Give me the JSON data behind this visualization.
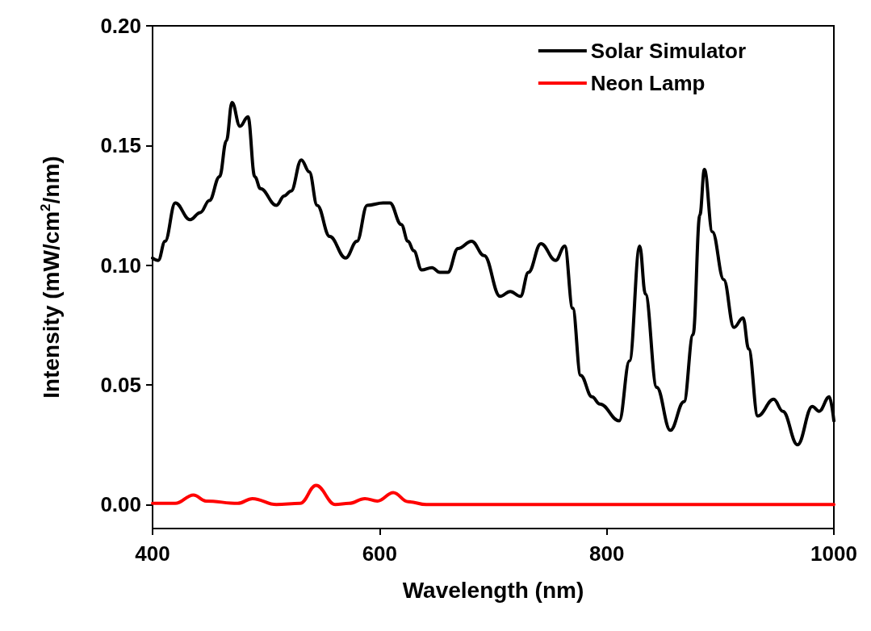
{
  "chart_data": {
    "type": "line",
    "xlabel": "Wavelength (nm)",
    "ylabel": "Intensity (mW/cm$^{2}$/nm)",
    "xlim": [
      400,
      1000
    ],
    "xticks": [
      400,
      600,
      800,
      1000
    ],
    "ylim": [
      -0.01,
      0.2
    ],
    "yticks": [
      {
        "value": 0,
        "label": "0.00"
      },
      {
        "value": 0.05,
        "label": "0.05"
      },
      {
        "value": 0.1,
        "label": "0.10"
      },
      {
        "value": 0.15,
        "label": "0.15"
      },
      {
        "value": 0.2,
        "label": "0.20"
      }
    ],
    "grid": false,
    "legend": "top right",
    "marker": "none",
    "line_style": "solid",
    "series": [
      {
        "name": "Solar Simulator",
        "color": "#000000",
        "x": [
          400,
          405,
          411,
          420,
          433,
          442,
          450,
          459,
          465,
          470,
          477,
          484,
          490,
          495,
          509,
          516,
          522,
          531,
          538,
          545,
          556,
          570,
          580,
          589,
          603,
          609,
          619,
          625,
          630,
          637,
          646,
          653,
          660,
          669,
          681,
          692,
          706,
          715,
          724,
          731,
          742,
          755,
          763,
          770,
          777,
          787,
          794,
          811,
          820,
          829,
          834,
          844,
          856,
          868,
          876,
          882,
          886,
          893,
          903,
          912,
          920,
          925,
          933,
          947,
          955,
          968,
          981,
          987,
          996,
          1000
        ],
        "values": [
          0.103,
          0.102,
          0.11,
          0.126,
          0.119,
          0.122,
          0.127,
          0.137,
          0.152,
          0.168,
          0.158,
          0.162,
          0.137,
          0.132,
          0.125,
          0.129,
          0.131,
          0.144,
          0.139,
          0.125,
          0.112,
          0.103,
          0.11,
          0.125,
          0.126,
          0.126,
          0.117,
          0.11,
          0.106,
          0.098,
          0.099,
          0.097,
          0.097,
          0.107,
          0.11,
          0.104,
          0.087,
          0.089,
          0.087,
          0.097,
          0.109,
          0.102,
          0.108,
          0.082,
          0.054,
          0.045,
          0.042,
          0.035,
          0.06,
          0.108,
          0.088,
          0.049,
          0.031,
          0.043,
          0.071,
          0.121,
          0.14,
          0.114,
          0.094,
          0.074,
          0.078,
          0.065,
          0.037,
          0.044,
          0.039,
          0.025,
          0.041,
          0.039,
          0.045,
          0.035
        ]
      },
      {
        "name": "Neon Lamp",
        "color": "#ff0000",
        "x": [
          400,
          420,
          436,
          447,
          475,
          488,
          509,
          530,
          544,
          561,
          573,
          587,
          598,
          612,
          625,
          641,
          700,
          800,
          900,
          1000
        ],
        "values": [
          0.0005,
          0.0005,
          0.004,
          0.0015,
          0.0005,
          0.0025,
          0,
          0.0005,
          0.008,
          0,
          0.0005,
          0.0025,
          0.0015,
          0.005,
          0.0012,
          0,
          0,
          0,
          0,
          0
        ]
      }
    ]
  }
}
